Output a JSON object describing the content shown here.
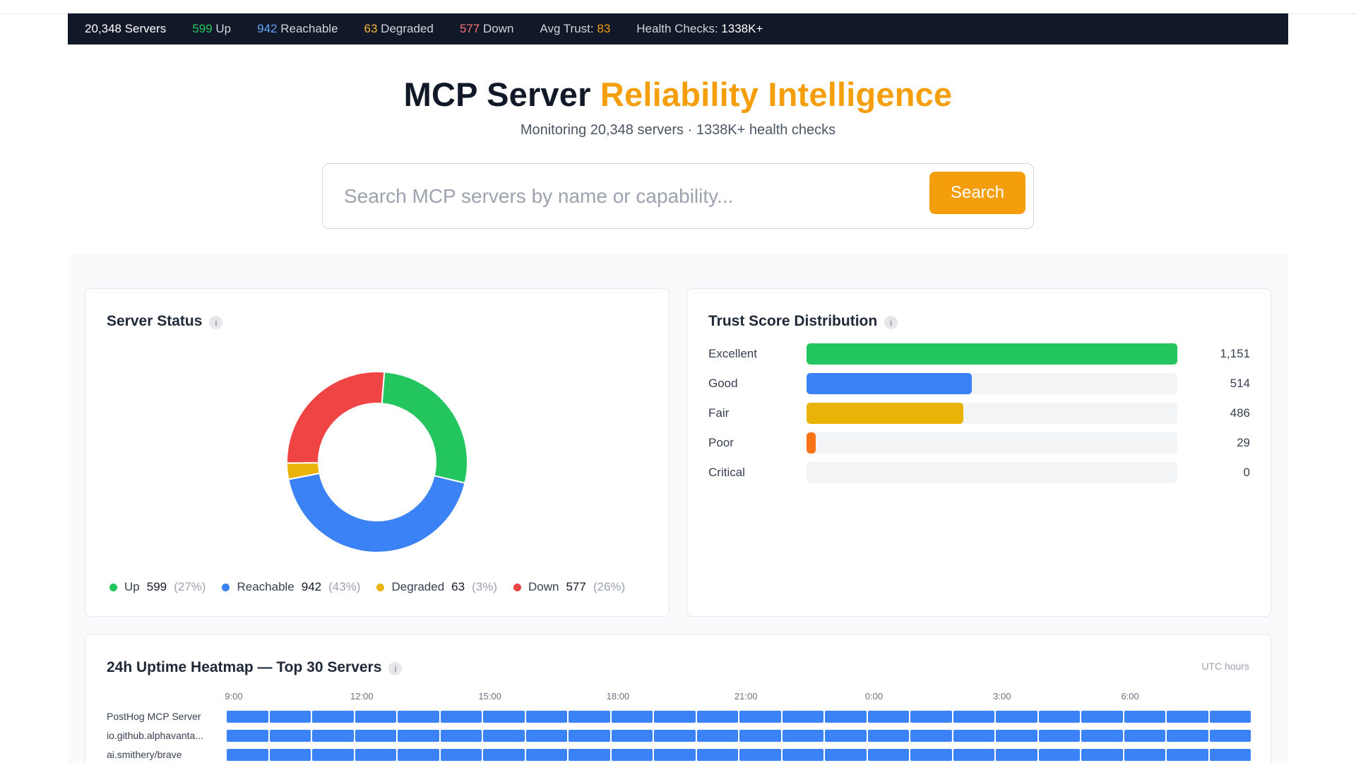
{
  "stats": {
    "total": "20,348 Servers",
    "up_num": "599",
    "up_label": " Up",
    "reachable_num": "942",
    "reachable_label": " Reachable",
    "degraded_num": "63",
    "degraded_label": " Degraded",
    "down_num": "577",
    "down_label": " Down",
    "avg_trust_label": "Avg Trust: ",
    "avg_trust_num": "83",
    "health_label": "Health Checks: ",
    "health_num": "1338K+"
  },
  "hero": {
    "title_main": "MCP Server ",
    "title_accent": "Reliability Intelligence",
    "subtitle": "Monitoring 20,348 servers · 1338K+ health checks"
  },
  "search": {
    "placeholder": "Search MCP servers by name or capability...",
    "value": "",
    "button": "Search"
  },
  "server_status": {
    "title": "Server Status",
    "info": "i",
    "chart_data": {
      "type": "pie",
      "categories": [
        "Up",
        "Reachable",
        "Degraded",
        "Down"
      ],
      "values": [
        599,
        942,
        63,
        577
      ],
      "colors": [
        "#22c55e",
        "#3b82f6",
        "#eab308",
        "#ef4444"
      ]
    },
    "legend": [
      {
        "label": "Up",
        "count": "599",
        "pct": "(27%)",
        "color": "#22c55e"
      },
      {
        "label": "Reachable",
        "count": "942",
        "pct": "(43%)",
        "color": "#3b82f6"
      },
      {
        "label": "Degraded",
        "count": "63",
        "pct": "(3%)",
        "color": "#eab308"
      },
      {
        "label": "Down",
        "count": "577",
        "pct": "(26%)",
        "color": "#ef4444"
      }
    ]
  },
  "trust": {
    "title": "Trust Score Distribution",
    "info": "i",
    "chart_data": {
      "type": "bar",
      "categories": [
        "Excellent",
        "Good",
        "Fair",
        "Poor",
        "Critical"
      ],
      "values": [
        1151,
        514,
        486,
        29,
        0
      ],
      "colors": [
        "#22c55e",
        "#3b82f6",
        "#eab308",
        "#f97316",
        "#ef4444"
      ]
    },
    "rows": [
      {
        "label": "Excellent",
        "count": "1,151"
      },
      {
        "label": "Good",
        "count": "514"
      },
      {
        "label": "Fair",
        "count": "486"
      },
      {
        "label": "Poor",
        "count": "29"
      },
      {
        "label": "Critical",
        "count": "0"
      }
    ]
  },
  "heatmap": {
    "title": "24h Uptime Heatmap — Top 30 Servers",
    "info": "i",
    "utc": "UTC hours",
    "hours": [
      "9:00",
      "12:00",
      "15:00",
      "18:00",
      "21:00",
      "0:00",
      "3:00",
      "6:00"
    ],
    "cell_color": "#3b82f6",
    "servers": [
      {
        "name": "PostHog MCP Server"
      },
      {
        "name": "io.github.alphavanta..."
      },
      {
        "name": "ai.smithery/brave"
      }
    ]
  }
}
